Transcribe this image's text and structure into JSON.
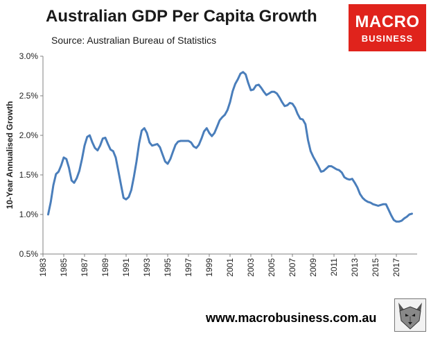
{
  "header": {
    "title": "Australian GDP Per Capita Growth",
    "subtitle": "Source: Australian Bureau of Statistics"
  },
  "logo": {
    "line1": "MACRO",
    "line2": "BUSINESS"
  },
  "footer": {
    "website": "www.macrobusiness.com.au"
  },
  "chart_data": {
    "type": "line",
    "title": "Australian GDP Per Capita Growth",
    "subtitle": "Source: Australian Bureau of Statistics",
    "xlabel": "",
    "ylabel": "10-Year Annualised Growth",
    "ylim": [
      0.5,
      3.0
    ],
    "yticks": [
      "0.5%",
      "1.0%",
      "1.5%",
      "2.0%",
      "2.5%",
      "3.0%"
    ],
    "xlim": [
      1983,
      2019
    ],
    "xticks": [
      "1983",
      "1985",
      "1987",
      "1989",
      "1991",
      "1993",
      "1995",
      "1997",
      "1999",
      "2001",
      "2003",
      "2005",
      "2007",
      "2009",
      "2011",
      "2013",
      "2015",
      "2017"
    ],
    "grid": false,
    "line_color": "#4a7ebb",
    "series": [
      {
        "x": [
          1983.5,
          1983.75,
          1984.0,
          1984.25,
          1984.5,
          1984.75,
          1985.0,
          1985.25,
          1985.5,
          1985.75,
          1986.0,
          1986.25,
          1986.5,
          1986.75,
          1987.0,
          1987.25,
          1987.5,
          1987.75,
          1988.0,
          1988.25,
          1988.5,
          1988.75,
          1989.0,
          1989.25,
          1989.5,
          1989.75,
          1990.0,
          1990.25,
          1990.5,
          1990.75,
          1991.0,
          1991.25,
          1991.5,
          1991.75,
          1992.0,
          1992.25,
          1992.5,
          1992.75,
          1993.0,
          1993.25,
          1993.5,
          1993.75,
          1994.0,
          1994.25,
          1994.5,
          1994.75,
          1995.0,
          1995.25,
          1995.5,
          1995.75,
          1996.0,
          1996.25,
          1996.5,
          1996.75,
          1997.0,
          1997.25,
          1997.5,
          1997.75,
          1998.0,
          1998.25,
          1998.5,
          1998.75,
          1999.0,
          1999.25,
          1999.5,
          1999.75,
          2000.0,
          2000.25,
          2000.5,
          2000.75,
          2001.0,
          2001.25,
          2001.5,
          2001.75,
          2002.0,
          2002.25,
          2002.5,
          2002.75,
          2003.0,
          2003.25,
          2003.5,
          2003.75,
          2004.0,
          2004.25,
          2004.5,
          2004.75,
          2005.0,
          2005.25,
          2005.5,
          2005.75,
          2006.0,
          2006.25,
          2006.5,
          2006.75,
          2007.0,
          2007.25,
          2007.5,
          2007.75,
          2008.0,
          2008.25,
          2008.5,
          2008.75,
          2009.0,
          2009.25,
          2009.5,
          2009.75,
          2010.0,
          2010.25,
          2010.5,
          2010.75,
          2011.0,
          2011.25,
          2011.5,
          2011.75,
          2012.0,
          2012.25,
          2012.5,
          2012.75,
          2013.0,
          2013.25,
          2013.5,
          2013.75,
          2014.0,
          2014.25,
          2014.5,
          2014.75,
          2015.0,
          2015.25,
          2015.5,
          2015.75,
          2016.0,
          2016.25,
          2016.5,
          2016.75,
          2017.0,
          2017.25,
          2017.5,
          2017.75,
          2018.0,
          2018.25,
          2018.5
        ],
        "y": [
          1.0,
          1.16,
          1.37,
          1.51,
          1.54,
          1.62,
          1.72,
          1.7,
          1.59,
          1.43,
          1.4,
          1.46,
          1.55,
          1.7,
          1.87,
          1.98,
          2.0,
          1.91,
          1.84,
          1.81,
          1.87,
          1.96,
          1.97,
          1.89,
          1.82,
          1.8,
          1.72,
          1.55,
          1.38,
          1.21,
          1.19,
          1.22,
          1.31,
          1.48,
          1.67,
          1.9,
          2.06,
          2.09,
          2.03,
          1.91,
          1.87,
          1.88,
          1.89,
          1.85,
          1.76,
          1.67,
          1.64,
          1.7,
          1.79,
          1.88,
          1.92,
          1.93,
          1.93,
          1.93,
          1.93,
          1.91,
          1.86,
          1.84,
          1.88,
          1.96,
          2.05,
          2.09,
          2.03,
          1.99,
          2.03,
          2.11,
          2.19,
          2.23,
          2.26,
          2.32,
          2.42,
          2.56,
          2.65,
          2.71,
          2.78,
          2.8,
          2.77,
          2.66,
          2.57,
          2.58,
          2.63,
          2.64,
          2.6,
          2.55,
          2.51,
          2.53,
          2.55,
          2.55,
          2.53,
          2.48,
          2.42,
          2.37,
          2.38,
          2.41,
          2.4,
          2.35,
          2.27,
          2.21,
          2.2,
          2.14,
          1.94,
          1.8,
          1.73,
          1.67,
          1.61,
          1.54,
          1.55,
          1.58,
          1.61,
          1.61,
          1.59,
          1.57,
          1.56,
          1.53,
          1.47,
          1.45,
          1.44,
          1.45,
          1.4,
          1.34,
          1.26,
          1.21,
          1.18,
          1.16,
          1.15,
          1.13,
          1.12,
          1.11,
          1.12,
          1.13,
          1.13,
          1.06,
          0.99,
          0.93,
          0.91,
          0.91,
          0.92,
          0.95,
          0.97,
          1.0,
          1.01
        ]
      }
    ]
  }
}
